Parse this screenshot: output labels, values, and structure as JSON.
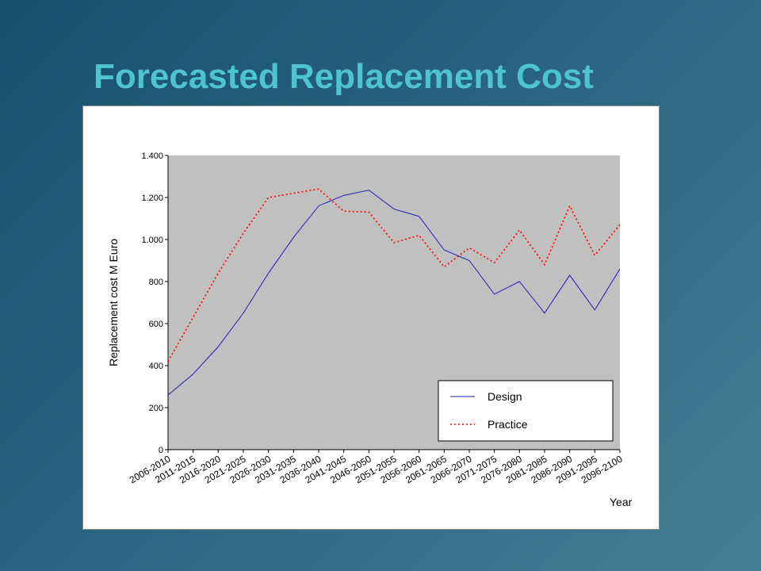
{
  "title": "Forecasted Replacement Cost",
  "chart_data": {
    "type": "line",
    "categories": [
      "2006-2010",
      "2011-2015",
      "2016-2020",
      "2021-2025",
      "2026-2030",
      "2031-2035",
      "2036-2040",
      "2041-2045",
      "2046-2050",
      "2051-2055",
      "2056-2060",
      "2061-2065",
      "2066-2070",
      "2071-2075",
      "2076-2080",
      "2081-2085",
      "2086-2090",
      "2091-2095",
      "2096-2100"
    ],
    "series": [
      {
        "name": "Design",
        "color": "#1f1fb4",
        "dash": "solid",
        "values": [
          260,
          360,
          490,
          650,
          840,
          1010,
          1160,
          1210,
          1235,
          1145,
          1110,
          950,
          900,
          740,
          800,
          650,
          830,
          665,
          860
        ]
      },
      {
        "name": "Practice",
        "color": "#ff0000",
        "dash": "dotted",
        "values": [
          420,
          630,
          840,
          1030,
          1200,
          1220,
          1240,
          1135,
          1130,
          985,
          1020,
          870,
          960,
          890,
          1045,
          880,
          1160,
          925,
          1070
        ]
      }
    ],
    "ylim": [
      0,
      1400
    ],
    "yticks": [
      0,
      200,
      400,
      600,
      800,
      {
        "value": 1000,
        "label": "1.000"
      },
      {
        "value": 1200,
        "label": "1.200"
      },
      {
        "value": 1400,
        "label": "1.400"
      }
    ],
    "y_label": "Replacement cost M Euro",
    "x_label": "Year",
    "legend": "lower right",
    "plot_background": "#c0c0c0"
  }
}
